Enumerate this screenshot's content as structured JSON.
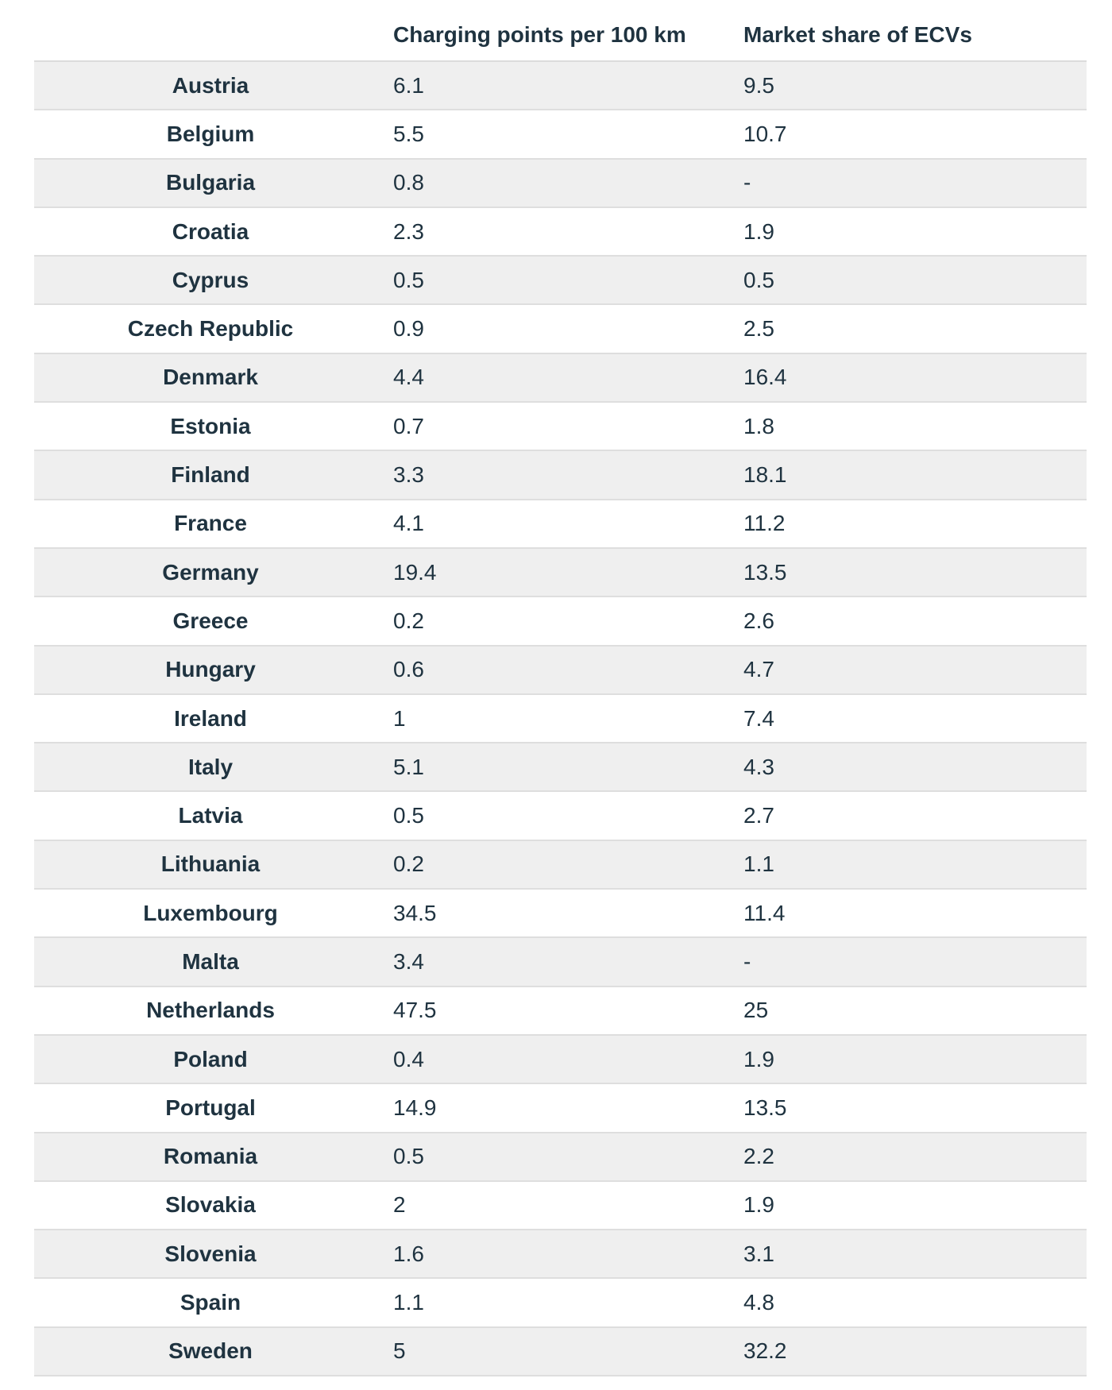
{
  "chart_data": {
    "type": "table",
    "columns": [
      "",
      "Charging points per 100 km",
      "Market share of ECVs"
    ],
    "rows": [
      {
        "country": "Austria",
        "charging_points": "6.1",
        "market_share": "9.5"
      },
      {
        "country": "Belgium",
        "charging_points": "5.5",
        "market_share": "10.7"
      },
      {
        "country": "Bulgaria",
        "charging_points": "0.8",
        "market_share": "-"
      },
      {
        "country": "Croatia",
        "charging_points": "2.3",
        "market_share": "1.9"
      },
      {
        "country": "Cyprus",
        "charging_points": "0.5",
        "market_share": "0.5"
      },
      {
        "country": "Czech Republic",
        "charging_points": "0.9",
        "market_share": "2.5"
      },
      {
        "country": "Denmark",
        "charging_points": "4.4",
        "market_share": "16.4"
      },
      {
        "country": "Estonia",
        "charging_points": "0.7",
        "market_share": "1.8"
      },
      {
        "country": "Finland",
        "charging_points": "3.3",
        "market_share": "18.1"
      },
      {
        "country": "France",
        "charging_points": "4.1",
        "market_share": "11.2"
      },
      {
        "country": "Germany",
        "charging_points": "19.4",
        "market_share": "13.5"
      },
      {
        "country": "Greece",
        "charging_points": "0.2",
        "market_share": "2.6"
      },
      {
        "country": "Hungary",
        "charging_points": "0.6",
        "market_share": "4.7"
      },
      {
        "country": "Ireland",
        "charging_points": "1",
        "market_share": "7.4"
      },
      {
        "country": "Italy",
        "charging_points": "5.1",
        "market_share": "4.3"
      },
      {
        "country": "Latvia",
        "charging_points": "0.5",
        "market_share": "2.7"
      },
      {
        "country": "Lithuania",
        "charging_points": "0.2",
        "market_share": "1.1"
      },
      {
        "country": "Luxembourg",
        "charging_points": "34.5",
        "market_share": "11.4"
      },
      {
        "country": "Malta",
        "charging_points": "3.4",
        "market_share": "-"
      },
      {
        "country": "Netherlands",
        "charging_points": "47.5",
        "market_share": "25"
      },
      {
        "country": "Poland",
        "charging_points": "0.4",
        "market_share": "1.9"
      },
      {
        "country": "Portugal",
        "charging_points": "14.9",
        "market_share": "13.5"
      },
      {
        "country": "Romania",
        "charging_points": "0.5",
        "market_share": "2.2"
      },
      {
        "country": "Slovakia",
        "charging_points": "2",
        "market_share": "1.9"
      },
      {
        "country": "Slovenia",
        "charging_points": "1.6",
        "market_share": "3.1"
      },
      {
        "country": "Spain",
        "charging_points": "1.1",
        "market_share": "4.8"
      },
      {
        "country": "Sweden",
        "charging_points": "5",
        "market_share": "32.2"
      }
    ],
    "colors": {
      "text": "#1f3340",
      "row_stripe": "#efefef",
      "row_plain": "#ffffff",
      "divider": "#dedede"
    }
  }
}
